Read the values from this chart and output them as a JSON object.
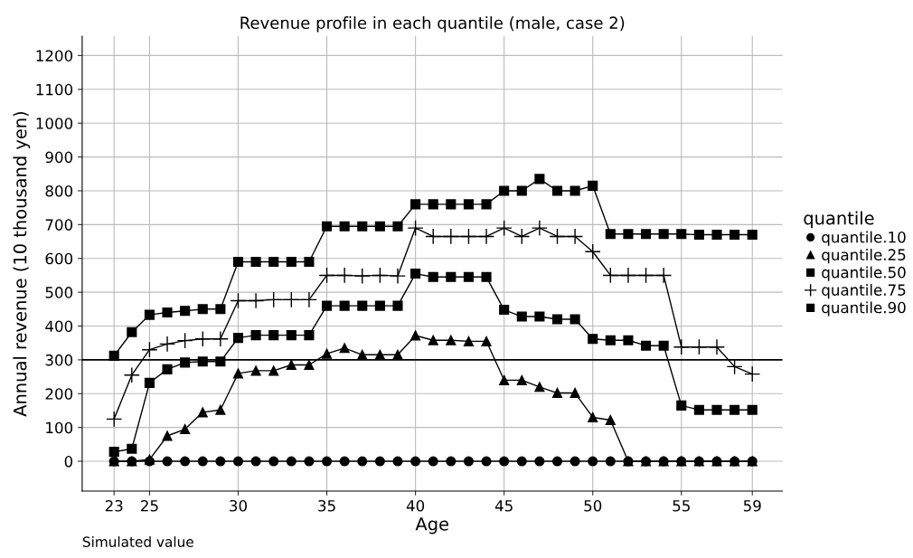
{
  "chart_data": {
    "type": "line",
    "title": "Revenue profile in each quantile (male, case 2)",
    "xlabel": "Age",
    "ylabel": "Annual revenue (10 thousand yen)",
    "legend_title": "quantile",
    "x": [
      23,
      24,
      25,
      26,
      27,
      28,
      29,
      30,
      31,
      32,
      33,
      34,
      35,
      36,
      37,
      38,
      39,
      40,
      41,
      42,
      43,
      44,
      45,
      46,
      47,
      48,
      49,
      50,
      51,
      52,
      53,
      54,
      55,
      56,
      57,
      58,
      59
    ],
    "series": [
      {
        "name": "quantile.10",
        "color": "#000000",
        "marker": "circle",
        "values": [
          0,
          0,
          0,
          0,
          0,
          0,
          0,
          0,
          0,
          0,
          0,
          0,
          0,
          0,
          0,
          0,
          0,
          0,
          0,
          0,
          0,
          0,
          0,
          0,
          0,
          0,
          0,
          0,
          0,
          0,
          0,
          0,
          0,
          0,
          0,
          0,
          0
        ]
      },
      {
        "name": "quantile.25",
        "color": "#000000",
        "marker": "triangle",
        "values": [
          0,
          0,
          5,
          75,
          95,
          145,
          152,
          260,
          268,
          268,
          285,
          285,
          318,
          335,
          315,
          315,
          315,
          372,
          358,
          358,
          355,
          355,
          240,
          240,
          220,
          202,
          202,
          130,
          122,
          0,
          0,
          0,
          0,
          0,
          0,
          0,
          0
        ]
      },
      {
        "name": "quantile.50",
        "color": "#000000",
        "marker": "square",
        "values": [
          28,
          37,
          232,
          272,
          292,
          295,
          295,
          365,
          373,
          373,
          373,
          373,
          460,
          460,
          460,
          460,
          460,
          555,
          545,
          545,
          545,
          545,
          448,
          428,
          428,
          420,
          420,
          362,
          358,
          358,
          342,
          342,
          165,
          152,
          152,
          152,
          152
        ]
      },
      {
        "name": "quantile.75",
        "color": "#000000",
        "marker": "cross",
        "values": [
          125,
          255,
          330,
          347,
          357,
          362,
          362,
          475,
          475,
          478,
          478,
          478,
          550,
          550,
          548,
          550,
          548,
          690,
          665,
          665,
          665,
          665,
          690,
          665,
          690,
          665,
          665,
          620,
          550,
          550,
          550,
          550,
          338,
          338,
          338,
          280,
          258
        ]
      },
      {
        "name": "quantile.90",
        "color": "#000000",
        "marker": "square",
        "values": [
          312,
          382,
          433,
          440,
          445,
          450,
          450,
          590,
          590,
          590,
          590,
          590,
          695,
          695,
          695,
          695,
          695,
          760,
          760,
          760,
          760,
          760,
          800,
          800,
          835,
          800,
          800,
          815,
          672,
          672,
          672,
          672,
          672,
          670,
          670,
          670,
          670
        ]
      }
    ],
    "xlim": [
      21.2,
      60.7
    ],
    "xticks": [
      23,
      25,
      30,
      35,
      40,
      45,
      50,
      55,
      59
    ],
    "ylim": [
      -88,
      1257
    ],
    "yticks": [
      0,
      100,
      200,
      300,
      400,
      500,
      600,
      700,
      800,
      900,
      1000,
      1100,
      1200
    ],
    "ref_lines": [
      {
        "axis": "y",
        "value": 300,
        "color": "#000000"
      }
    ],
    "grid": true,
    "legend": "right",
    "annotations": [
      "Simulated value"
    ]
  }
}
